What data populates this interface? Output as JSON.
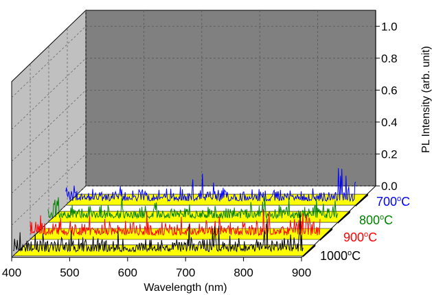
{
  "chart_data": {
    "type": "line",
    "style": "3d-waterfall",
    "xlabel": "Wavelength (nm)",
    "ylabel": "PL Intensity (arb. unit)",
    "xlim": [
      400,
      900
    ],
    "ylim": [
      0.0,
      1.1
    ],
    "x_ticks": [
      "400",
      "500",
      "600",
      "700",
      "800",
      "900"
    ],
    "y_ticks": [
      "0.0",
      "0.2",
      "0.4",
      "0.6",
      "0.8",
      "1.0"
    ],
    "grid": true,
    "series": [
      {
        "name": "700",
        "unit_prefix": "o",
        "unit": "C",
        "color": "#0000ff",
        "noise_level": 0.06
      },
      {
        "name": "800",
        "unit_prefix": "o",
        "unit": "C",
        "color": "#008000",
        "noise_level": 0.06
      },
      {
        "name": "900",
        "unit_prefix": "o",
        "unit": "C",
        "color": "#ff0000",
        "noise_level": 0.07
      },
      {
        "name": "1000",
        "unit_prefix": "o",
        "unit": "C",
        "color": "#000000",
        "noise_level": 0.07
      }
    ],
    "colors": {
      "back_wall": "#808080",
      "side_wall": "#c0c0c0",
      "ribbon": "#ffff00"
    }
  }
}
